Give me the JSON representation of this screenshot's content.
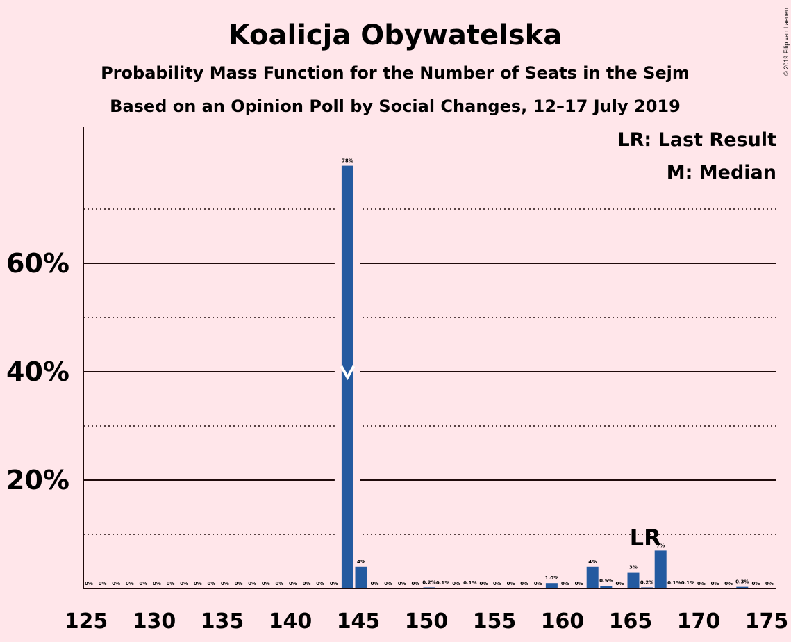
{
  "chart_data": {
    "type": "bar",
    "title": "Koalicja Obywatelska",
    "subtitle1": "Probability Mass Function for the Number of Seats in the Sejm",
    "subtitle2": "Based on an Opinion Poll by Social Changes, 12–17 July 2019",
    "copyright": "© 2019 Filip van Laenen",
    "legend": [
      "LR: Last Result",
      "M: Median"
    ],
    "x": [
      125,
      126,
      127,
      128,
      129,
      130,
      131,
      132,
      133,
      134,
      135,
      136,
      137,
      138,
      139,
      140,
      141,
      142,
      143,
      144,
      145,
      146,
      147,
      148,
      149,
      150,
      151,
      152,
      153,
      154,
      155,
      156,
      157,
      158,
      159,
      160,
      161,
      162,
      163,
      164,
      165,
      166,
      167,
      168,
      169,
      170,
      171,
      172,
      173,
      174,
      175
    ],
    "values": [
      0,
      0,
      0,
      0,
      0,
      0,
      0,
      0,
      0,
      0,
      0,
      0,
      0,
      0,
      0,
      0,
      0,
      0,
      0,
      78,
      4,
      0,
      0,
      0,
      0,
      0.2,
      0.1,
      0,
      0.1,
      0,
      0,
      0,
      0,
      0,
      1.0,
      0,
      0,
      4,
      0.5,
      0,
      3,
      0.2,
      7,
      0.1,
      0.1,
      0,
      0,
      0,
      0.3,
      0,
      0
    ],
    "labels": [
      "0%",
      "0%",
      "0%",
      "0%",
      "0%",
      "0%",
      "0%",
      "0%",
      "0%",
      "0%",
      "0%",
      "0%",
      "0%",
      "0%",
      "0%",
      "0%",
      "0%",
      "0%",
      "0%",
      "78%",
      "4%",
      "0%",
      "0%",
      "0%",
      "0%",
      "0.2%",
      "0.1%",
      "0%",
      "0.1%",
      "0%",
      "0%",
      "0%",
      "0%",
      "0%",
      "1.0%",
      "0%",
      "0%",
      "4%",
      "0.5%",
      "0%",
      "3%",
      "0.2%",
      "7%",
      "0.1%",
      "0.1%",
      "0%",
      "0%",
      "0%",
      "0.3%",
      "0%",
      "0%"
    ],
    "xticks": [
      "125",
      "130",
      "135",
      "140",
      "145",
      "150",
      "155",
      "160",
      "165",
      "170",
      "175"
    ],
    "yticks": [
      "20%",
      "40%",
      "60%"
    ],
    "ylim": [
      0,
      85
    ],
    "median": 144,
    "last_result": 167,
    "last_result_label": "LR",
    "bar_color": "#245aa0",
    "grid": "solid at 20/40/60, dotted at 10/30/50/70"
  }
}
